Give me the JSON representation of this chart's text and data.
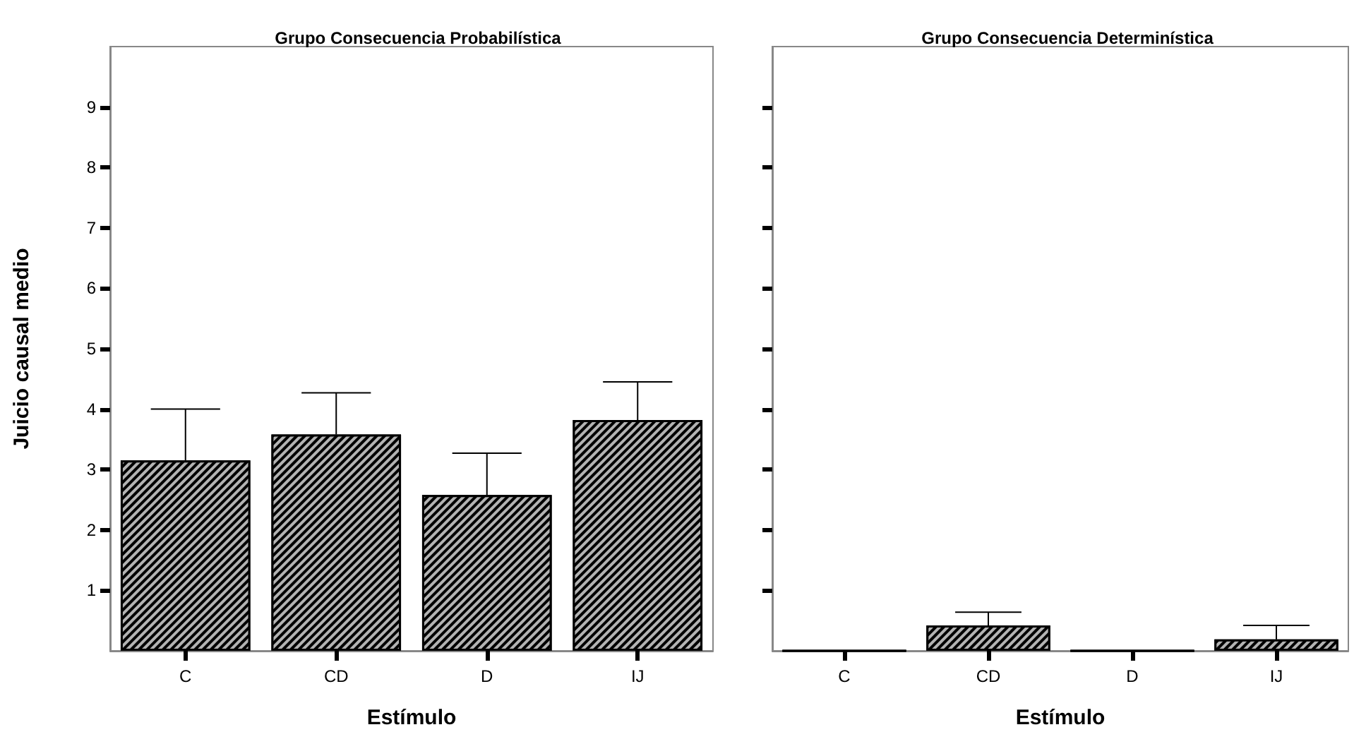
{
  "chart_data": [
    {
      "type": "bar",
      "title": "Grupo Consecuencia Probabilística",
      "xlabel": "Estímulo",
      "ylabel": "Juicio causal medio",
      "categories": [
        "C",
        "CD",
        "D",
        "IJ"
      ],
      "values": [
        3.15,
        3.58,
        2.58,
        3.82
      ],
      "errors": [
        [
          3.15,
          4.0
        ],
        [
          3.58,
          4.27
        ],
        [
          2.58,
          3.27
        ],
        [
          3.82,
          4.45
        ]
      ],
      "color": "#000000",
      "ylim": [
        0,
        10
      ],
      "yticks": [
        1,
        2,
        3,
        4,
        5,
        6,
        7,
        8,
        9
      ],
      "grid": false
    },
    {
      "type": "bar",
      "title": "Grupo Consecuencia Determinística",
      "xlabel": "Estímulo",
      "categories": [
        "C",
        "CD",
        "D",
        "IJ"
      ],
      "values": [
        0,
        0.42,
        0,
        0.19
      ],
      "errors": [
        null,
        [
          0.42,
          0.64
        ],
        null,
        [
          0.19,
          0.42
        ]
      ],
      "color": "#000000",
      "ylim": [
        0,
        10
      ],
      "yticks": [
        1,
        2,
        3,
        4,
        5,
        6,
        7,
        8,
        9
      ],
      "tick_labels": "x",
      "grid": false
    }
  ]
}
